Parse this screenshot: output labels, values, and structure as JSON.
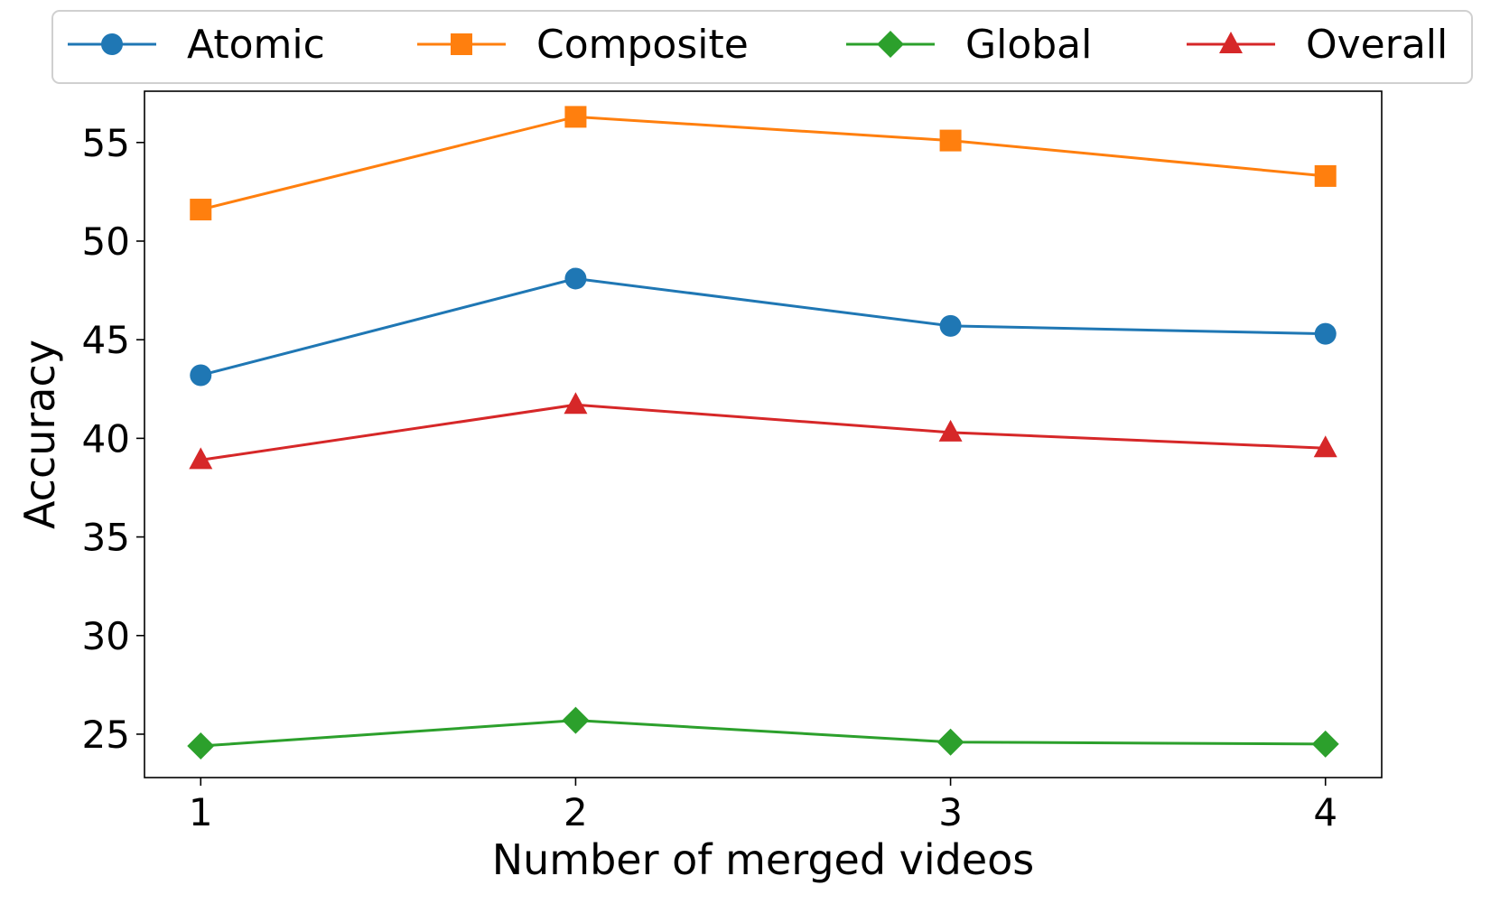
{
  "chart_data": {
    "type": "line",
    "title": "",
    "xlabel": "Number of merged videos",
    "ylabel": "Accuracy",
    "categories": [
      "1",
      "2",
      "3",
      "4"
    ],
    "x": [
      1,
      2,
      3,
      4
    ],
    "xlim": [
      0.85,
      4.15
    ],
    "ylim": [
      22.8,
      57.6
    ],
    "yticks": [
      25,
      30,
      35,
      40,
      45,
      50,
      55
    ],
    "grid": false,
    "legend_position": "top",
    "series": [
      {
        "name": "Atomic",
        "values": [
          43.2,
          48.1,
          45.7,
          45.3
        ],
        "color": "#1f77b4",
        "marker": "circle"
      },
      {
        "name": "Composite",
        "values": [
          51.6,
          56.3,
          55.1,
          53.3
        ],
        "color": "#ff7f0e",
        "marker": "square"
      },
      {
        "name": "Global",
        "values": [
          24.4,
          25.7,
          24.6,
          24.5
        ],
        "color": "#2ca02c",
        "marker": "diamond"
      },
      {
        "name": "Overall",
        "values": [
          38.9,
          41.7,
          40.3,
          39.5
        ],
        "color": "#d62728",
        "marker": "triangle"
      }
    ]
  }
}
